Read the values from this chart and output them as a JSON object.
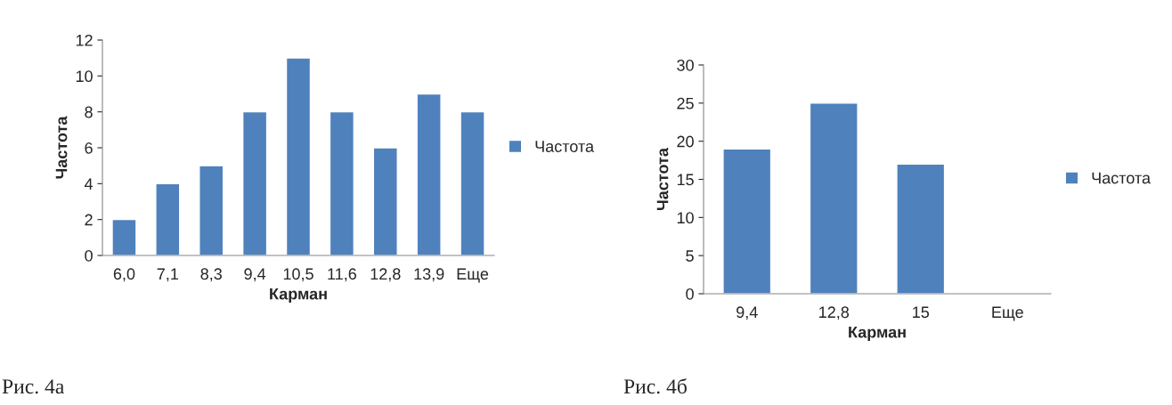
{
  "chart_data": [
    {
      "type": "bar",
      "xlabel": "Карман",
      "ylabel": "Частота",
      "categories": [
        "6,0",
        "7,1",
        "8,3",
        "9,4",
        "10,5",
        "11,6",
        "12,8",
        "13,9",
        "Еще"
      ],
      "series": [
        {
          "name": "Частота",
          "color": "#4f81bd",
          "values": [
            2,
            4,
            5,
            8,
            11,
            8,
            6,
            9,
            8
          ]
        }
      ],
      "ylim": [
        0,
        12
      ],
      "yticks": [
        0,
        2,
        4,
        6,
        8,
        10,
        12
      ],
      "grid": false,
      "legend": "right",
      "annotations": [
        "Рис. 4а"
      ]
    },
    {
      "type": "bar",
      "xlabel": "Карман",
      "ylabel": "Частота",
      "categories": [
        "9,4",
        "12,8",
        "15",
        "Еще"
      ],
      "series": [
        {
          "name": "Частота",
          "color": "#4f81bd",
          "values": [
            19,
            25,
            17,
            null
          ]
        }
      ],
      "ylim": [
        0,
        30
      ],
      "yticks": [
        0,
        5,
        10,
        15,
        20,
        25,
        30
      ],
      "grid": false,
      "legend": "right",
      "annotations": [
        "Рис. 4б"
      ]
    }
  ]
}
